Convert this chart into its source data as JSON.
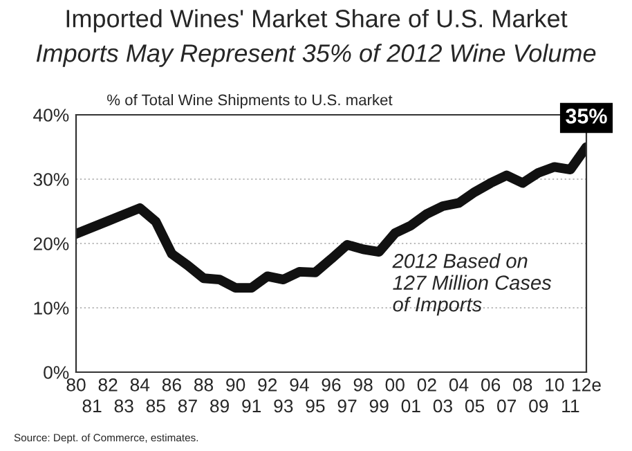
{
  "chart_data": {
    "type": "line",
    "title": "Imported Wines' Market Share of U.S. Market",
    "subtitle": "Imports May Represent 35% of 2012 Wine Volume",
    "ylabel": "% of Total Wine Shipments to U.S. market",
    "categories": [
      "80",
      "81",
      "82",
      "83",
      "84",
      "85",
      "86",
      "87",
      "88",
      "89",
      "90",
      "91",
      "92",
      "93",
      "94",
      "95",
      "96",
      "97",
      "98",
      "99",
      "00",
      "01",
      "02",
      "03",
      "04",
      "05",
      "06",
      "07",
      "08",
      "09",
      "10",
      "11",
      "12e"
    ],
    "series": [
      {
        "color": "#111111",
        "values": [
          21.5,
          22.5,
          23.5,
          24.5,
          25.5,
          23.4,
          18.4,
          16.6,
          14.6,
          14.4,
          13.1,
          13.1,
          14.9,
          14.4,
          15.6,
          15.5,
          17.6,
          19.8,
          19.1,
          18.7,
          21.6,
          22.8,
          24.6,
          25.8,
          26.3,
          28.0,
          29.4,
          30.6,
          29.4,
          31.0,
          31.9,
          31.5,
          35
        ]
      }
    ],
    "ylim": [
      0,
      40
    ],
    "yticks": [
      {
        "value": 0,
        "label": "0%"
      },
      {
        "value": 10,
        "label": "10%"
      },
      {
        "value": 20,
        "label": "20%"
      },
      {
        "value": 30,
        "label": "30%"
      },
      {
        "value": 40,
        "label": "40%"
      }
    ],
    "grid": "y",
    "marker": "none",
    "line_style": "solid",
    "legend": false,
    "annotations": [
      {
        "text": "35%",
        "x": "12e",
        "y": 35
      },
      "2012 Based on\n127 Million Cases\nof Imports",
      "Source: Dept. of Commerce, estimates."
    ]
  }
}
